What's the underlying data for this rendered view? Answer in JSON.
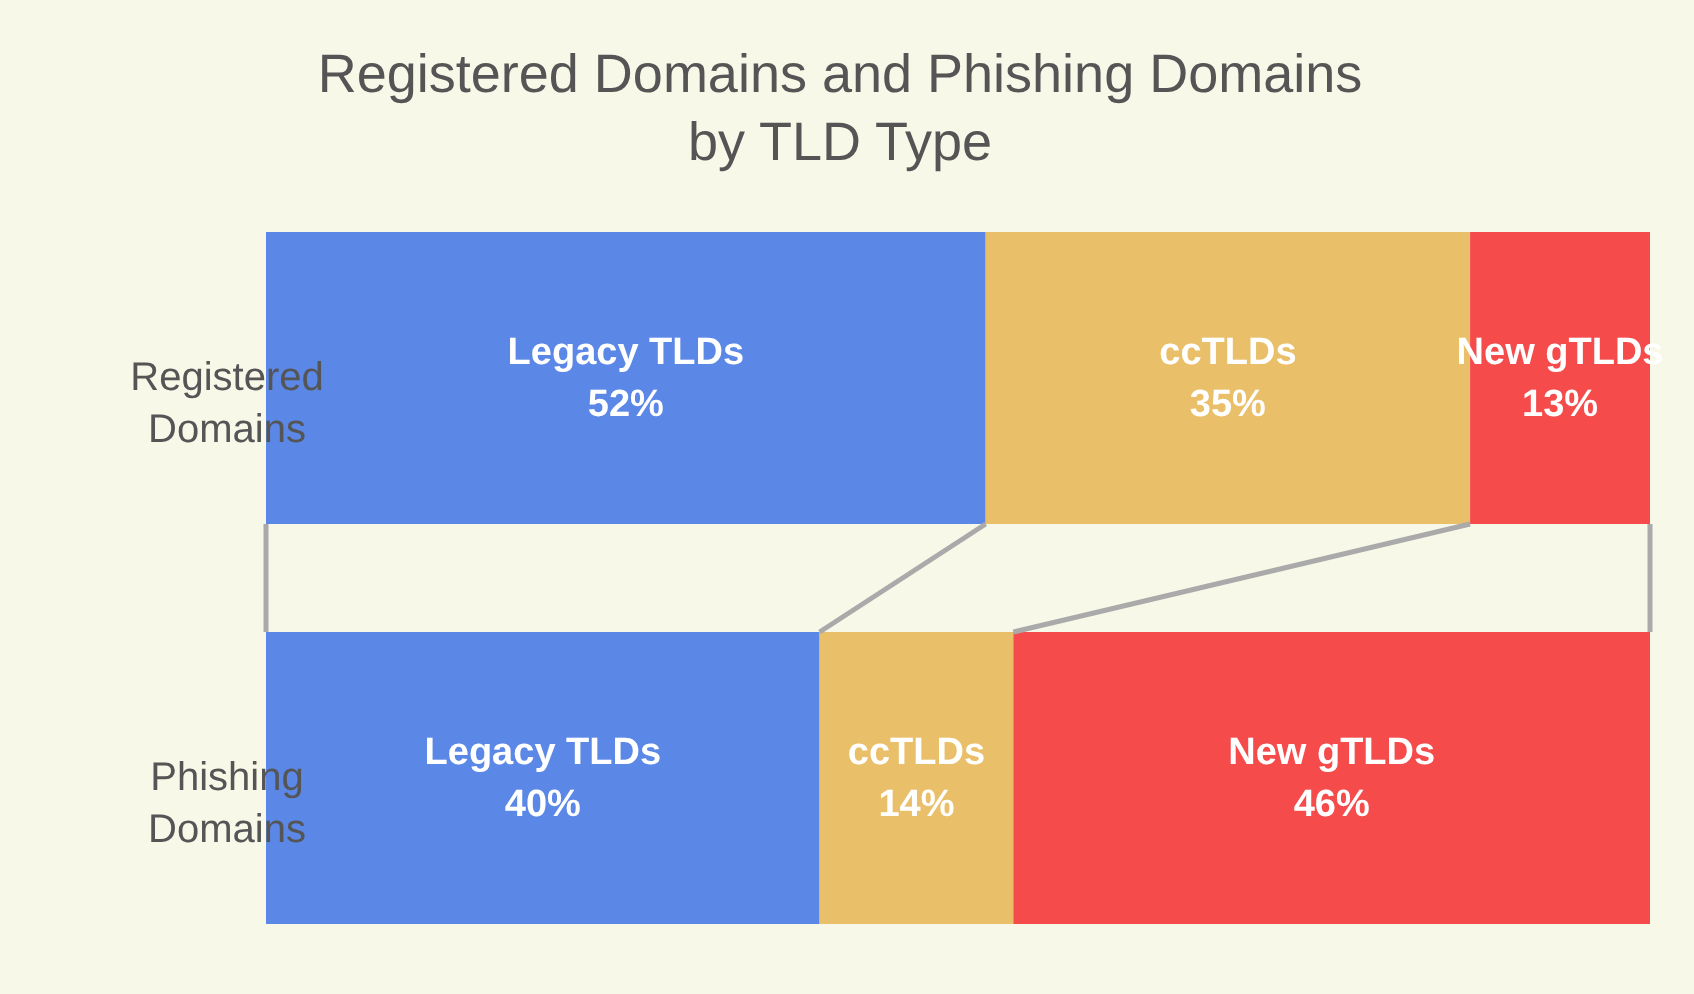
{
  "chart_data": {
    "type": "bar",
    "orientation": "horizontal",
    "stacked": true,
    "title": "Registered Domains and Phishing Domains\nby TLD Type",
    "categories": [
      "Registered Domains",
      "Phishing Domains"
    ],
    "xlim": [
      0,
      100
    ],
    "tick_labels": "y",
    "series": [
      {
        "name": "Legacy TLDs",
        "color": "#5b87e6",
        "values": [
          52,
          40
        ],
        "value_labels": [
          "52%",
          "40%"
        ]
      },
      {
        "name": "ccTLDs",
        "color": "#eabf69",
        "values": [
          35,
          14
        ],
        "value_labels": [
          "35%",
          "14%"
        ]
      },
      {
        "name": "New gTLDs",
        "color": "#f54b4b",
        "values": [
          13,
          46
        ],
        "value_labels": [
          "13%",
          "46%"
        ]
      }
    ]
  }
}
